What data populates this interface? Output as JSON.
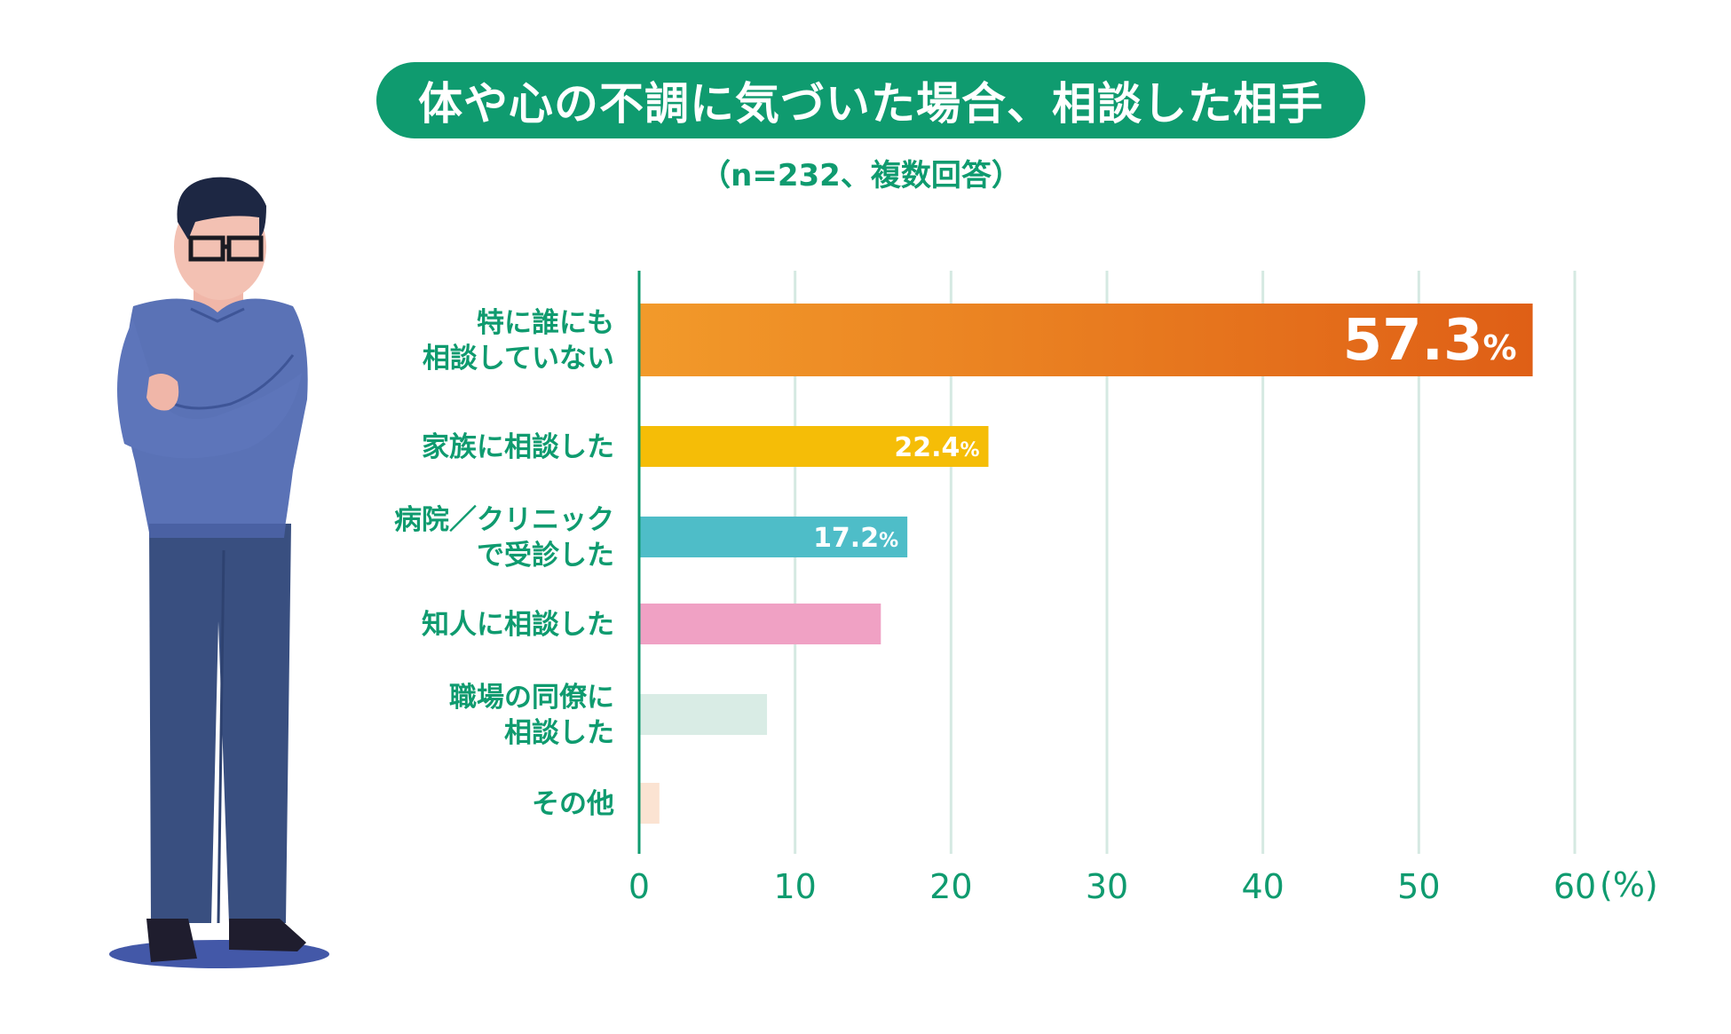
{
  "title": "体や心の不調に気づいた場合、相談した相手",
  "subtitle": "（n=232、複数回答）",
  "chart_data": {
    "type": "bar",
    "orientation": "horizontal",
    "categories": [
      [
        "特に誰にも",
        "相談していない"
      ],
      [
        "家族に相談した"
      ],
      [
        "病院／クリニック",
        "で受診した"
      ],
      [
        "知人に相談した"
      ],
      [
        "職場の同僚に",
        "相談した"
      ],
      [
        "その他"
      ]
    ],
    "values": [
      57.3,
      22.4,
      17.2,
      15.5,
      8.2,
      1.3
    ],
    "value_labels": [
      "57.3",
      "22.4",
      "17.2",
      "",
      "",
      ""
    ],
    "value_unit": "%",
    "colors": [
      "#e36f1c",
      "#f5bd07",
      "#4ebdc8",
      "#f0a1c4",
      "#d9ece5",
      "#fbe3d2"
    ],
    "x_ticks": [
      "0",
      "10",
      "20",
      "30",
      "40",
      "50",
      "60"
    ],
    "x_unit": "(%)",
    "xlim": [
      0,
      60
    ],
    "grid": true,
    "axis_color": "#0f9b6f",
    "grid_color": "#d5e9e2"
  }
}
